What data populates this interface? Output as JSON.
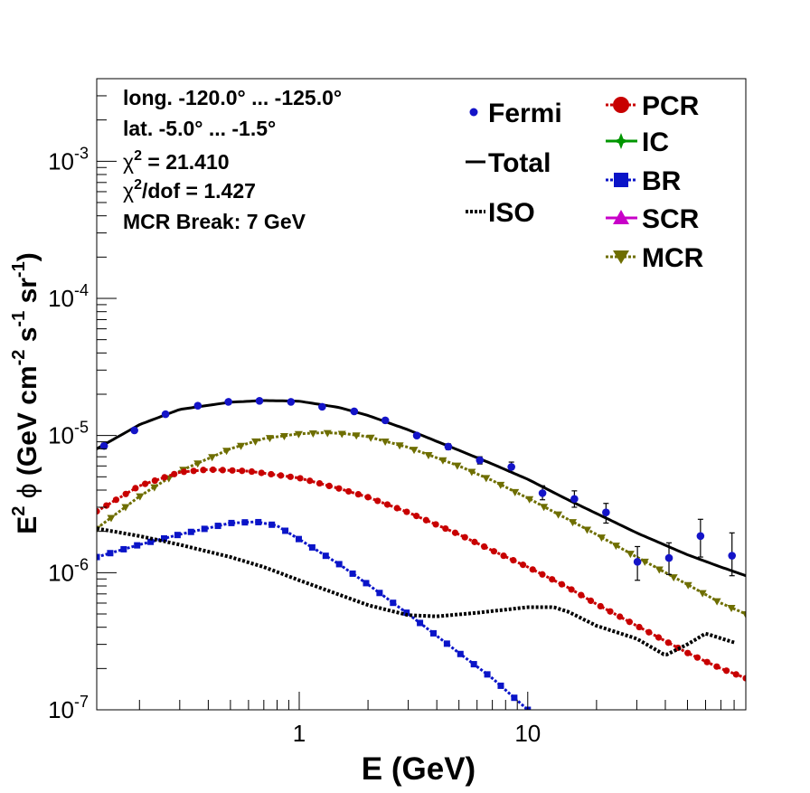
{
  "chart_data": {
    "type": "scatter",
    "xscale": "log",
    "yscale": "log",
    "xlim": [
      0.13,
      90
    ],
    "ylim": [
      1e-07,
      0.004
    ],
    "xlabel": "E (GeV)",
    "ylabel": {
      "prefix": "E",
      "prefix_sup": "2",
      "phi": "ϕ",
      "open": "(GeV cm",
      "sup1": "-2",
      "mid": " s",
      "sup2": "-1",
      "mid2": " sr",
      "sup3": "-1",
      "close": ")"
    },
    "x_tick_labels": [
      {
        "value": 1,
        "label": "1"
      },
      {
        "value": 10,
        "label": "10"
      }
    ],
    "y_tick_labels": [
      {
        "value": 1e-07,
        "base": "10",
        "exp": "-7"
      },
      {
        "value": 1e-06,
        "base": "10",
        "exp": "-6"
      },
      {
        "value": 1e-05,
        "base": "10",
        "exp": "-5"
      },
      {
        "value": 0.0001,
        "base": "10",
        "exp": "-4"
      },
      {
        "value": 0.001,
        "base": "10",
        "exp": "-3"
      }
    ],
    "info": {
      "lines": [
        "long. -120.0° ... -125.0°",
        "lat. -5.0° ... -1.5°"
      ],
      "chi2": {
        "symbol": "χ",
        "sup": "2",
        "text": " = 21.410"
      },
      "chi2dof": {
        "symbol": "χ",
        "sup": "2",
        "text": "/dof = 1.427"
      },
      "mcr_break": "MCR Break:  7 GeV"
    },
    "legend": {
      "placement": "top-right",
      "col1": [
        {
          "label": "Fermi",
          "color": "#1414c8",
          "style": "dot"
        },
        {
          "label": "Total",
          "color": "#000000",
          "style": "line"
        },
        {
          "label": "ISO",
          "color": "#000000",
          "style": "dotted"
        }
      ],
      "col2": [
        {
          "label": "PCR",
          "color": "#c80000",
          "style": "circle"
        },
        {
          "label": "IC",
          "color": "#009600",
          "style": "cross"
        },
        {
          "label": "BR",
          "color": "#0a14c8",
          "style": "square"
        },
        {
          "label": "SCR",
          "color": "#c800c8",
          "style": "triangle"
        },
        {
          "label": "MCR",
          "color": "#6e6e00",
          "style": "tridown"
        }
      ]
    },
    "series": [
      {
        "name": "Total",
        "color": "#000000",
        "style": "solid",
        "x": [
          0.13,
          0.2,
          0.3,
          0.5,
          0.7,
          1.0,
          1.5,
          2.0,
          3.0,
          5.0,
          7.0,
          10,
          15,
          20,
          30,
          50,
          70,
          90
        ],
        "y": [
          8e-06,
          1.2e-05,
          1.55e-05,
          1.75e-05,
          1.8e-05,
          1.78e-05,
          1.6e-05,
          1.4e-05,
          1.1e-05,
          7.8e-06,
          6.2e-06,
          4.8e-06,
          3.4e-06,
          2.7e-06,
          1.95e-06,
          1.35e-06,
          1.1e-06,
          9.5e-07
        ]
      },
      {
        "name": "MCR",
        "color": "#6e6e00",
        "style": "marker",
        "x": [
          0.13,
          0.2,
          0.3,
          0.5,
          0.7,
          1.0,
          1.3,
          1.6,
          2.0,
          3.0,
          5.0,
          7.0,
          10,
          15,
          20,
          30,
          50,
          70,
          90
        ],
        "y": [
          2.1e-06,
          3.6e-06,
          5.5e-06,
          8e-06,
          9.5e-06,
          1.03e-05,
          1.05e-05,
          1.03e-05,
          9.8e-06,
          8.2e-06,
          6e-06,
          4.7e-06,
          3.5e-06,
          2.45e-06,
          1.9e-06,
          1.3e-06,
          8.2e-07,
          6e-07,
          5e-07
        ]
      },
      {
        "name": "PCR",
        "color": "#c80000",
        "style": "marker",
        "x": [
          0.13,
          0.2,
          0.3,
          0.4,
          0.6,
          1.0,
          1.5,
          2.0,
          3.0,
          5.0,
          7.0,
          10,
          15,
          20,
          30,
          50,
          70,
          90
        ],
        "y": [
          2.8e-06,
          4.3e-06,
          5.4e-06,
          5.65e-06,
          5.5e-06,
          4.9e-06,
          4.1e-06,
          3.55e-06,
          2.75e-06,
          1.9e-06,
          1.45e-06,
          1.1e-06,
          7.8e-07,
          5.9e-07,
          4.1e-07,
          2.6e-07,
          2e-07,
          1.7e-07
        ]
      },
      {
        "name": "BR",
        "color": "#0a14c8",
        "style": "marker",
        "x": [
          0.13,
          0.2,
          0.3,
          0.5,
          0.65,
          0.8,
          1.0,
          1.5,
          2.0,
          3.0,
          5.0,
          7.0,
          10
        ],
        "y": [
          1.3e-06,
          1.6e-06,
          1.9e-06,
          2.3e-06,
          2.35e-06,
          2.2e-06,
          1.75e-06,
          1.15e-06,
          8.2e-07,
          5e-07,
          2.6e-07,
          1.7e-07,
          1e-07
        ]
      },
      {
        "name": "ISO",
        "color": "#000000",
        "style": "dotted",
        "x": [
          0.13,
          0.2,
          0.3,
          0.5,
          0.7,
          1.0,
          1.5,
          2.0,
          3.0,
          4.0,
          6.0,
          10,
          13,
          15,
          20,
          30,
          40,
          50,
          60,
          80
        ],
        "y": [
          2.1e-06,
          1.85e-06,
          1.6e-06,
          1.3e-06,
          1.1e-06,
          8.8e-07,
          6.9e-07,
          5.8e-07,
          4.9e-07,
          4.8e-07,
          5.1e-07,
          5.6e-07,
          5.6e-07,
          5.2e-07,
          4.1e-07,
          3.3e-07,
          2.5e-07,
          3e-07,
          3.6e-07,
          3.1e-07
        ]
      }
    ],
    "fermi": {
      "name": "Fermi",
      "color": "#1414c8",
      "points": [
        {
          "x": 0.14,
          "y": 8.4e-06,
          "lo": 8e-06,
          "hi": 8.8e-06
        },
        {
          "x": 0.19,
          "y": 1.09e-05,
          "lo": 1.05e-05,
          "hi": 1.13e-05
        },
        {
          "x": 0.26,
          "y": 1.43e-05,
          "lo": 1.39e-05,
          "hi": 1.47e-05
        },
        {
          "x": 0.36,
          "y": 1.65e-05,
          "lo": 1.6e-05,
          "hi": 1.7e-05
        },
        {
          "x": 0.49,
          "y": 1.76e-05,
          "lo": 1.71e-05,
          "hi": 1.81e-05
        },
        {
          "x": 0.67,
          "y": 1.79e-05,
          "lo": 1.74e-05,
          "hi": 1.84e-05
        },
        {
          "x": 0.92,
          "y": 1.76e-05,
          "lo": 1.71e-05,
          "hi": 1.81e-05
        },
        {
          "x": 1.26,
          "y": 1.62e-05,
          "lo": 1.57e-05,
          "hi": 1.67e-05
        },
        {
          "x": 1.74,
          "y": 1.5e-05,
          "lo": 1.45e-05,
          "hi": 1.55e-05
        },
        {
          "x": 2.38,
          "y": 1.29e-05,
          "lo": 1.24e-05,
          "hi": 1.34e-05
        },
        {
          "x": 3.27,
          "y": 1e-05,
          "lo": 9.6e-06,
          "hi": 1.04e-05
        },
        {
          "x": 4.49,
          "y": 8.3e-06,
          "lo": 7.9e-06,
          "hi": 8.7e-06
        },
        {
          "x": 6.17,
          "y": 6.6e-06,
          "lo": 6.2e-06,
          "hi": 7e-06
        },
        {
          "x": 8.48,
          "y": 5.9e-06,
          "lo": 5.4e-06,
          "hi": 6.4e-06
        },
        {
          "x": 11.6,
          "y": 3.8e-06,
          "lo": 3.4e-06,
          "hi": 4.3e-06
        },
        {
          "x": 16.0,
          "y": 3.45e-06,
          "lo": 3e-06,
          "hi": 3.95e-06
        },
        {
          "x": 22.0,
          "y": 2.75e-06,
          "lo": 2.3e-06,
          "hi": 3.2e-06
        },
        {
          "x": 30.2,
          "y": 1.2e-06,
          "lo": 8.8e-07,
          "hi": 1.55e-06
        },
        {
          "x": 41.5,
          "y": 1.28e-06,
          "lo": 9.7e-07,
          "hi": 1.65e-06
        },
        {
          "x": 57.0,
          "y": 1.85e-06,
          "lo": 1.3e-06,
          "hi": 2.45e-06
        },
        {
          "x": 78.3,
          "y": 1.33e-06,
          "lo": 9.5e-07,
          "hi": 1.95e-06
        }
      ]
    }
  }
}
